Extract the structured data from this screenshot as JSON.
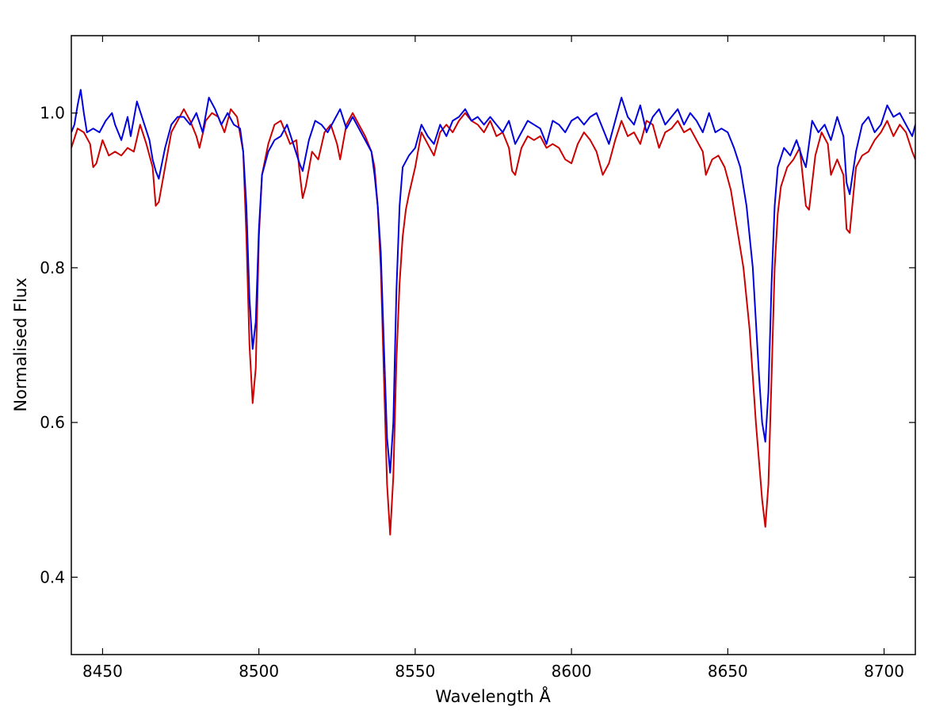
{
  "chart_data": {
    "type": "line",
    "title": "",
    "xlabel": "Wavelength Å",
    "ylabel": "Normalised Flux",
    "xlim": [
      8440,
      8710
    ],
    "ylim": [
      0.3,
      1.1
    ],
    "x_ticks": [
      8450,
      8500,
      8550,
      8600,
      8650,
      8700
    ],
    "x_tick_labels": [
      "8450",
      "8500",
      "8550",
      "8600",
      "8650",
      "8700"
    ],
    "y_ticks": [
      0.4,
      0.6,
      0.8,
      1.0
    ],
    "y_tick_labels": [
      "0.4",
      "0.6",
      "0.8",
      "1.0"
    ],
    "grid": false,
    "legend": "none",
    "series": [
      {
        "color": "#cc0000",
        "points": [
          [
            8440,
            0.955
          ],
          [
            8442,
            0.98
          ],
          [
            8444,
            0.975
          ],
          [
            8446,
            0.96
          ],
          [
            8447,
            0.93
          ],
          [
            8448,
            0.935
          ],
          [
            8450,
            0.965
          ],
          [
            8452,
            0.945
          ],
          [
            8454,
            0.95
          ],
          [
            8456,
            0.945
          ],
          [
            8458,
            0.955
          ],
          [
            8460,
            0.95
          ],
          [
            8462,
            0.985
          ],
          [
            8464,
            0.96
          ],
          [
            8466,
            0.93
          ],
          [
            8467,
            0.88
          ],
          [
            8468,
            0.885
          ],
          [
            8470,
            0.93
          ],
          [
            8472,
            0.975
          ],
          [
            8474,
            0.99
          ],
          [
            8476,
            1.005
          ],
          [
            8478,
            0.99
          ],
          [
            8480,
            0.97
          ],
          [
            8481,
            0.955
          ],
          [
            8483,
            0.99
          ],
          [
            8485,
            1.0
          ],
          [
            8487,
            0.995
          ],
          [
            8489,
            0.975
          ],
          [
            8491,
            1.005
          ],
          [
            8493,
            0.995
          ],
          [
            8495,
            0.95
          ],
          [
            8496,
            0.84
          ],
          [
            8497,
            0.7
          ],
          [
            8498,
            0.625
          ],
          [
            8499,
            0.67
          ],
          [
            8500,
            0.84
          ],
          [
            8501,
            0.92
          ],
          [
            8503,
            0.96
          ],
          [
            8505,
            0.985
          ],
          [
            8507,
            0.99
          ],
          [
            8509,
            0.97
          ],
          [
            8510,
            0.96
          ],
          [
            8512,
            0.965
          ],
          [
            8513,
            0.925
          ],
          [
            8514,
            0.89
          ],
          [
            8515,
            0.905
          ],
          [
            8517,
            0.95
          ],
          [
            8519,
            0.94
          ],
          [
            8521,
            0.975
          ],
          [
            8523,
            0.985
          ],
          [
            8525,
            0.96
          ],
          [
            8526,
            0.94
          ],
          [
            8528,
            0.985
          ],
          [
            8530,
            1.0
          ],
          [
            8532,
            0.985
          ],
          [
            8534,
            0.97
          ],
          [
            8536,
            0.95
          ],
          [
            8537,
            0.93
          ],
          [
            8538,
            0.88
          ],
          [
            8539,
            0.8
          ],
          [
            8540,
            0.66
          ],
          [
            8541,
            0.52
          ],
          [
            8542,
            0.455
          ],
          [
            8543,
            0.53
          ],
          [
            8544,
            0.68
          ],
          [
            8545,
            0.78
          ],
          [
            8546,
            0.84
          ],
          [
            8547,
            0.875
          ],
          [
            8548,
            0.895
          ],
          [
            8550,
            0.93
          ],
          [
            8552,
            0.975
          ],
          [
            8554,
            0.96
          ],
          [
            8556,
            0.945
          ],
          [
            8558,
            0.975
          ],
          [
            8560,
            0.985
          ],
          [
            8562,
            0.975
          ],
          [
            8564,
            0.99
          ],
          [
            8566,
            1.0
          ],
          [
            8568,
            0.99
          ],
          [
            8570,
            0.985
          ],
          [
            8572,
            0.975
          ],
          [
            8574,
            0.99
          ],
          [
            8576,
            0.97
          ],
          [
            8578,
            0.975
          ],
          [
            8580,
            0.955
          ],
          [
            8581,
            0.925
          ],
          [
            8582,
            0.92
          ],
          [
            8584,
            0.955
          ],
          [
            8586,
            0.97
          ],
          [
            8588,
            0.965
          ],
          [
            8590,
            0.97
          ],
          [
            8592,
            0.955
          ],
          [
            8594,
            0.96
          ],
          [
            8596,
            0.955
          ],
          [
            8598,
            0.94
          ],
          [
            8600,
            0.935
          ],
          [
            8602,
            0.96
          ],
          [
            8604,
            0.975
          ],
          [
            8606,
            0.965
          ],
          [
            8608,
            0.95
          ],
          [
            8610,
            0.92
          ],
          [
            8612,
            0.935
          ],
          [
            8614,
            0.965
          ],
          [
            8616,
            0.99
          ],
          [
            8618,
            0.97
          ],
          [
            8620,
            0.975
          ],
          [
            8622,
            0.96
          ],
          [
            8624,
            0.99
          ],
          [
            8626,
            0.985
          ],
          [
            8628,
            0.955
          ],
          [
            8630,
            0.975
          ],
          [
            8632,
            0.98
          ],
          [
            8634,
            0.99
          ],
          [
            8636,
            0.975
          ],
          [
            8638,
            0.98
          ],
          [
            8640,
            0.965
          ],
          [
            8642,
            0.95
          ],
          [
            8643,
            0.92
          ],
          [
            8645,
            0.94
          ],
          [
            8647,
            0.945
          ],
          [
            8649,
            0.93
          ],
          [
            8651,
            0.9
          ],
          [
            8653,
            0.85
          ],
          [
            8655,
            0.8
          ],
          [
            8657,
            0.72
          ],
          [
            8659,
            0.6
          ],
          [
            8661,
            0.5
          ],
          [
            8662,
            0.465
          ],
          [
            8663,
            0.52
          ],
          [
            8664,
            0.66
          ],
          [
            8665,
            0.8
          ],
          [
            8666,
            0.87
          ],
          [
            8667,
            0.905
          ],
          [
            8669,
            0.93
          ],
          [
            8671,
            0.94
          ],
          [
            8673,
            0.955
          ],
          [
            8675,
            0.88
          ],
          [
            8676,
            0.875
          ],
          [
            8678,
            0.945
          ],
          [
            8680,
            0.975
          ],
          [
            8682,
            0.96
          ],
          [
            8683,
            0.92
          ],
          [
            8685,
            0.94
          ],
          [
            8687,
            0.92
          ],
          [
            8688,
            0.85
          ],
          [
            8689,
            0.845
          ],
          [
            8691,
            0.93
          ],
          [
            8693,
            0.945
          ],
          [
            8695,
            0.95
          ],
          [
            8697,
            0.965
          ],
          [
            8699,
            0.975
          ],
          [
            8701,
            0.99
          ],
          [
            8703,
            0.97
          ],
          [
            8705,
            0.985
          ],
          [
            8707,
            0.975
          ],
          [
            8709,
            0.95
          ],
          [
            8710,
            0.94
          ]
        ]
      },
      {
        "color": "#0000dd",
        "points": [
          [
            8440,
            0.975
          ],
          [
            8441,
            0.985
          ],
          [
            8442,
            1.01
          ],
          [
            8443,
            1.03
          ],
          [
            8444,
            1.0
          ],
          [
            8445,
            0.975
          ],
          [
            8447,
            0.98
          ],
          [
            8449,
            0.975
          ],
          [
            8451,
            0.99
          ],
          [
            8453,
            1.0
          ],
          [
            8454,
            0.985
          ],
          [
            8456,
            0.965
          ],
          [
            8458,
            0.995
          ],
          [
            8459,
            0.97
          ],
          [
            8461,
            1.015
          ],
          [
            8463,
            0.99
          ],
          [
            8465,
            0.965
          ],
          [
            8466,
            0.94
          ],
          [
            8467,
            0.925
          ],
          [
            8468,
            0.915
          ],
          [
            8470,
            0.955
          ],
          [
            8472,
            0.985
          ],
          [
            8474,
            0.995
          ],
          [
            8476,
            0.995
          ],
          [
            8478,
            0.985
          ],
          [
            8480,
            1.0
          ],
          [
            8482,
            0.975
          ],
          [
            8484,
            1.02
          ],
          [
            8486,
            1.005
          ],
          [
            8488,
            0.985
          ],
          [
            8490,
            1.0
          ],
          [
            8492,
            0.985
          ],
          [
            8494,
            0.98
          ],
          [
            8495,
            0.95
          ],
          [
            8496,
            0.88
          ],
          [
            8497,
            0.76
          ],
          [
            8498,
            0.695
          ],
          [
            8499,
            0.73
          ],
          [
            8500,
            0.85
          ],
          [
            8501,
            0.92
          ],
          [
            8503,
            0.95
          ],
          [
            8505,
            0.965
          ],
          [
            8507,
            0.97
          ],
          [
            8509,
            0.985
          ],
          [
            8511,
            0.96
          ],
          [
            8513,
            0.935
          ],
          [
            8514,
            0.925
          ],
          [
            8516,
            0.965
          ],
          [
            8518,
            0.99
          ],
          [
            8520,
            0.985
          ],
          [
            8522,
            0.975
          ],
          [
            8524,
            0.99
          ],
          [
            8526,
            1.005
          ],
          [
            8528,
            0.98
          ],
          [
            8530,
            0.995
          ],
          [
            8532,
            0.98
          ],
          [
            8534,
            0.965
          ],
          [
            8536,
            0.95
          ],
          [
            8537,
            0.92
          ],
          [
            8538,
            0.88
          ],
          [
            8539,
            0.82
          ],
          [
            8540,
            0.7
          ],
          [
            8541,
            0.58
          ],
          [
            8542,
            0.535
          ],
          [
            8543,
            0.6
          ],
          [
            8544,
            0.77
          ],
          [
            8545,
            0.88
          ],
          [
            8546,
            0.93
          ],
          [
            8548,
            0.945
          ],
          [
            8550,
            0.955
          ],
          [
            8552,
            0.985
          ],
          [
            8554,
            0.97
          ],
          [
            8556,
            0.96
          ],
          [
            8558,
            0.985
          ],
          [
            8560,
            0.97
          ],
          [
            8562,
            0.99
          ],
          [
            8564,
            0.995
          ],
          [
            8566,
            1.005
          ],
          [
            8568,
            0.99
          ],
          [
            8570,
            0.995
          ],
          [
            8572,
            0.985
          ],
          [
            8574,
            0.995
          ],
          [
            8576,
            0.985
          ],
          [
            8578,
            0.975
          ],
          [
            8580,
            0.99
          ],
          [
            8582,
            0.96
          ],
          [
            8584,
            0.975
          ],
          [
            8586,
            0.99
          ],
          [
            8588,
            0.985
          ],
          [
            8590,
            0.98
          ],
          [
            8592,
            0.96
          ],
          [
            8594,
            0.99
          ],
          [
            8596,
            0.985
          ],
          [
            8598,
            0.975
          ],
          [
            8600,
            0.99
          ],
          [
            8602,
            0.995
          ],
          [
            8604,
            0.985
          ],
          [
            8606,
            0.995
          ],
          [
            8608,
            1.0
          ],
          [
            8610,
            0.98
          ],
          [
            8612,
            0.96
          ],
          [
            8614,
            0.99
          ],
          [
            8616,
            1.02
          ],
          [
            8618,
            0.995
          ],
          [
            8620,
            0.985
          ],
          [
            8622,
            1.01
          ],
          [
            8624,
            0.975
          ],
          [
            8626,
            0.995
          ],
          [
            8628,
            1.005
          ],
          [
            8630,
            0.985
          ],
          [
            8632,
            0.995
          ],
          [
            8634,
            1.005
          ],
          [
            8636,
            0.985
          ],
          [
            8638,
            1.0
          ],
          [
            8640,
            0.99
          ],
          [
            8642,
            0.975
          ],
          [
            8644,
            1.0
          ],
          [
            8646,
            0.975
          ],
          [
            8648,
            0.98
          ],
          [
            8650,
            0.975
          ],
          [
            8652,
            0.955
          ],
          [
            8654,
            0.93
          ],
          [
            8656,
            0.88
          ],
          [
            8658,
            0.8
          ],
          [
            8660,
            0.66
          ],
          [
            8661,
            0.6
          ],
          [
            8662,
            0.575
          ],
          [
            8663,
            0.64
          ],
          [
            8664,
            0.78
          ],
          [
            8665,
            0.88
          ],
          [
            8666,
            0.93
          ],
          [
            8668,
            0.955
          ],
          [
            8670,
            0.945
          ],
          [
            8672,
            0.965
          ],
          [
            8674,
            0.94
          ],
          [
            8675,
            0.93
          ],
          [
            8677,
            0.99
          ],
          [
            8679,
            0.975
          ],
          [
            8681,
            0.985
          ],
          [
            8683,
            0.965
          ],
          [
            8685,
            0.995
          ],
          [
            8687,
            0.97
          ],
          [
            8688,
            0.91
          ],
          [
            8689,
            0.895
          ],
          [
            8691,
            0.95
          ],
          [
            8693,
            0.985
          ],
          [
            8695,
            0.995
          ],
          [
            8697,
            0.975
          ],
          [
            8699,
            0.985
          ],
          [
            8701,
            1.01
          ],
          [
            8703,
            0.995
          ],
          [
            8705,
            1.0
          ],
          [
            8707,
            0.985
          ],
          [
            8709,
            0.97
          ],
          [
            8710,
            0.985
          ]
        ]
      }
    ]
  }
}
